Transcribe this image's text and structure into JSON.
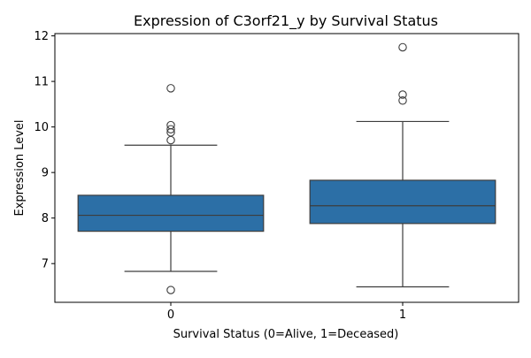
{
  "chart_data": {
    "type": "box",
    "title": "Expression of C3orf21_y by Survival Status",
    "xlabel": "Survival Status (0=Alive, 1=Deceased)",
    "ylabel": "Expression Level",
    "categories": [
      "0",
      "1"
    ],
    "ylim": [
      6.15,
      12.05
    ],
    "yticks": [
      7,
      8,
      9,
      10,
      11,
      12
    ],
    "grid": false,
    "box_color": "#2c6fa6",
    "edge_color": "#3d3d3d",
    "boxes": [
      {
        "category": "0",
        "whisker_low": 6.83,
        "q1": 7.71,
        "median": 8.06,
        "q3": 8.5,
        "whisker_high": 9.6,
        "outliers": [
          6.42,
          9.71,
          9.88,
          9.95,
          10.04,
          10.85
        ]
      },
      {
        "category": "1",
        "whisker_low": 6.49,
        "q1": 7.88,
        "median": 8.27,
        "q3": 8.83,
        "whisker_high": 10.12,
        "outliers": [
          10.58,
          10.71,
          11.75
        ]
      }
    ]
  }
}
